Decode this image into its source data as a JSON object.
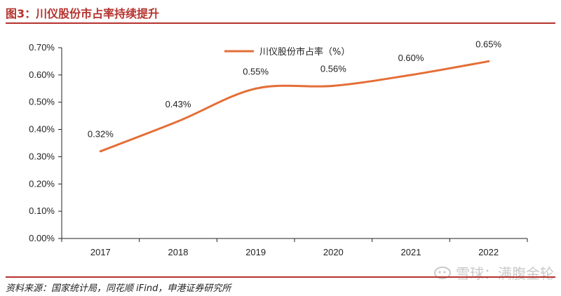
{
  "header": {
    "title": "图3：川仪股份市占率持续提升"
  },
  "footer": {
    "source": "资料来源：国家统计局，同花顺 iFind，申港证券研究所"
  },
  "watermark": {
    "text": "雪球：满腹金轮"
  },
  "colors": {
    "line": "#e46e37",
    "title": "#b5322e",
    "axis": "#222222"
  },
  "chart_data": {
    "type": "line",
    "title": "",
    "xlabel": "",
    "ylabel": "",
    "categories": [
      "2017",
      "2018",
      "2019",
      "2020",
      "2021",
      "2022"
    ],
    "series": [
      {
        "name": "川仪股份市占率（%）",
        "values": [
          0.32,
          0.43,
          0.55,
          0.56,
          0.6,
          0.65
        ]
      }
    ],
    "data_labels": [
      "0.32%",
      "0.43%",
      "0.55%",
      "0.56%",
      "0.60%",
      "0.65%"
    ],
    "y_ticks": [
      "0.00%",
      "0.10%",
      "0.20%",
      "0.30%",
      "0.40%",
      "0.50%",
      "0.60%",
      "0.70%"
    ],
    "ylim": [
      0,
      0.7
    ],
    "grid": false,
    "legend_position": "top-center"
  }
}
